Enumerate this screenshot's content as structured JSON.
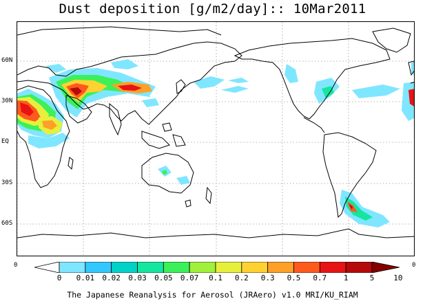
{
  "title": "Dust deposition [g/m2/day]:: 10Mar2011",
  "lat_labels": [
    "60N",
    "30N",
    "EQ",
    "30S",
    "60S"
  ],
  "edge_labels": {
    "left": "0",
    "right": "0"
  },
  "colorbar": {
    "labels": [
      "0",
      "0.01",
      "0.02",
      "0.03",
      "0.05",
      "0.07",
      "0.1",
      "0.2",
      "0.3",
      "0.5",
      "0.7",
      "1",
      "5",
      "10"
    ],
    "colors": [
      "#ffffff",
      "#7fe6ff",
      "#32c8ff",
      "#00d2c8",
      "#14e6a0",
      "#3cf05a",
      "#a0f03c",
      "#e6f03c",
      "#ffd232",
      "#ffa028",
      "#ff5a1e",
      "#e61414",
      "#b40a0a",
      "#820000"
    ]
  },
  "credit": "The Japanese Reanalysis for Aerosol (JRAero) v1.0 MRI/KU_RIAM"
}
